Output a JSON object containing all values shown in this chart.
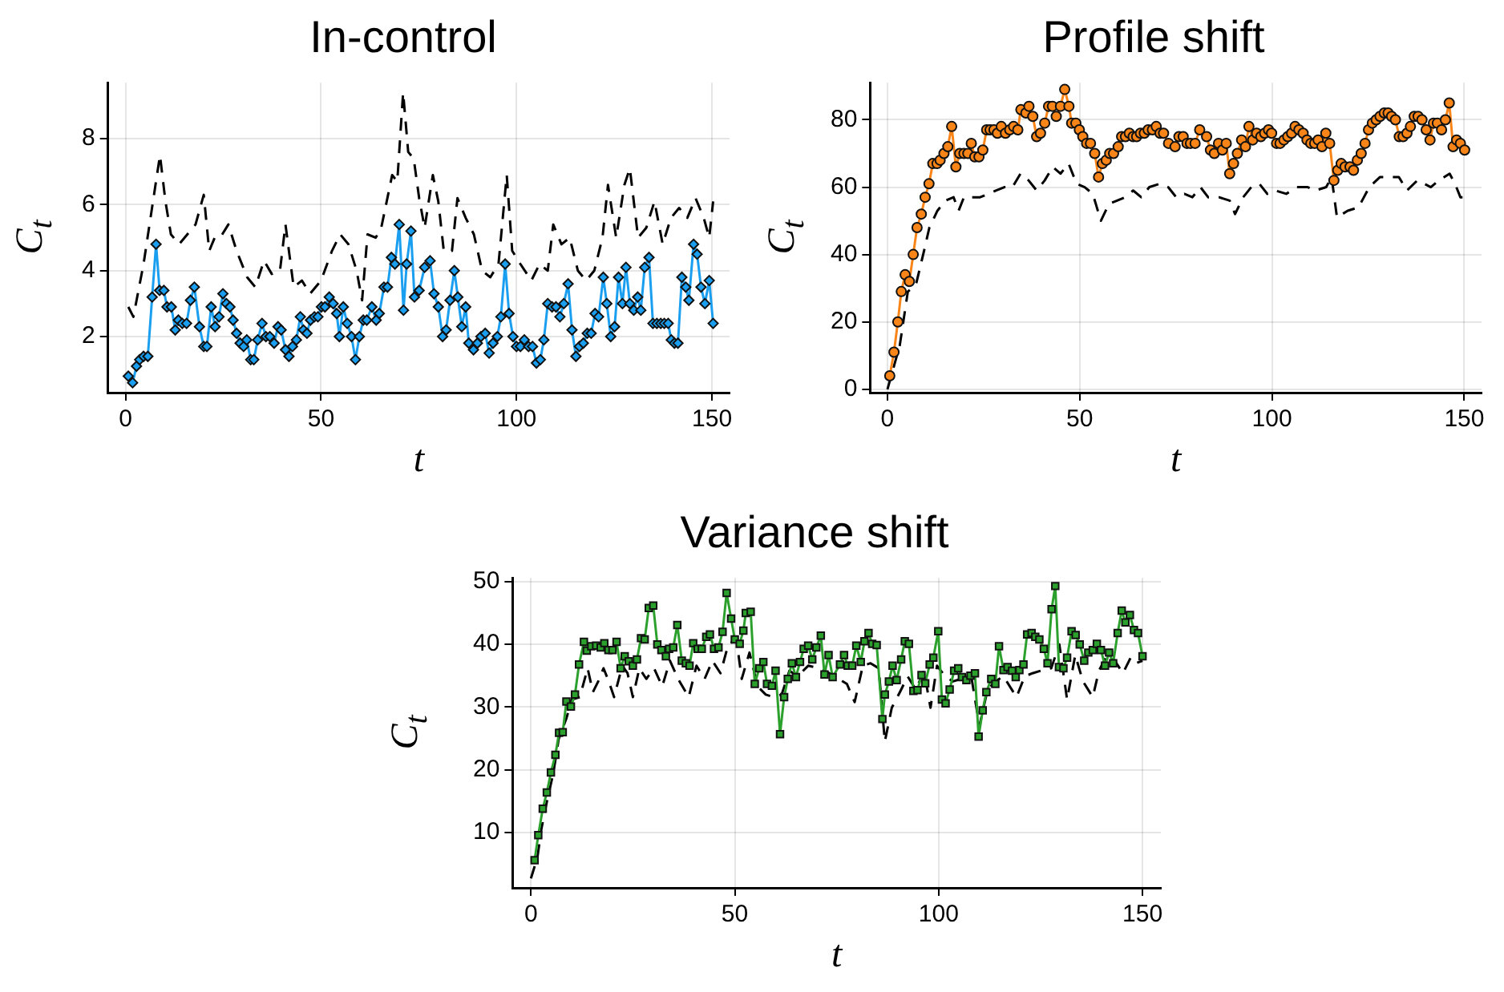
{
  "chart_data": [
    {
      "type": "line",
      "title": "In-control",
      "xlabel": "t",
      "ylabel": "C$_{t}$",
      "xlim": [
        -4.5,
        154.5
      ],
      "xticks": [
        0,
        50,
        100,
        150
      ],
      "ylim": [
        0.3,
        9.7
      ],
      "yticks": [
        2,
        4,
        6,
        8
      ],
      "grid": true,
      "legend": false,
      "series": [
        {
          "color": "#1a9ff0",
          "marker": "diamond",
          "line_style": "solid",
          "x": [
            0.7,
            1.8,
            2.8,
            3.6,
            4.6,
            5.7,
            6.8,
            7.8,
            8.7,
            9.8,
            10.6,
            11.7,
            12.7,
            13.5,
            14.5,
            15.6,
            16.6,
            17.6,
            18.9,
            20,
            20.8,
            21.9,
            22.9,
            23.9,
            24.9,
            25.8,
            26.7,
            27.5,
            28.4,
            29.3,
            30.2,
            31,
            32,
            32.8,
            33.8,
            34.9,
            35.9,
            36.9,
            38,
            39,
            39.8,
            40.9,
            41.8,
            42.7,
            43.7,
            44.7,
            45.5,
            46.4,
            47.3,
            48.3,
            49.2,
            50.1,
            51,
            52.1,
            53.1,
            54,
            54.7,
            55.7,
            56.7,
            57.8,
            58.8,
            59.8,
            60.8,
            61.7,
            63,
            64.1,
            64.9,
            66.1,
            67,
            68,
            68.9,
            70,
            71.1,
            71.9,
            73,
            73.9,
            75.1,
            76.5,
            77.9,
            78.9,
            80,
            81.1,
            82,
            83,
            84.1,
            85,
            86,
            87,
            87.8,
            89,
            90,
            90.9,
            92,
            93,
            94,
            95.1,
            96,
            97.1,
            98.1,
            99.1,
            100,
            101,
            102,
            103.1,
            104.1,
            105.1,
            106.1,
            107,
            108,
            109.1,
            110.1,
            111.1,
            112.1,
            113.2,
            114.2,
            115.2,
            116.1,
            117.1,
            118.1,
            119.1,
            120.1,
            121,
            122.2,
            123.1,
            124.1,
            125.1,
            126.1,
            127.1,
            128,
            129,
            130,
            131,
            131.8,
            132.8,
            133.9,
            134.9,
            135.9,
            136.9,
            137.8,
            138.8,
            139.6,
            140.4,
            141.3,
            142.3,
            143.3,
            144.1,
            145.3,
            146.2,
            147.2,
            148.2,
            149.3,
            150.3
          ],
          "values": [
            0.8,
            0.6,
            1.1,
            1.3,
            1.4,
            1.4,
            3.2,
            4.8,
            3.4,
            3.4,
            2.9,
            2.9,
            2.2,
            2.5,
            2.4,
            2.4,
            3.1,
            3.5,
            2.3,
            1.7,
            1.7,
            2.9,
            2.3,
            2.6,
            3.3,
            3.0,
            2.9,
            2.5,
            2.1,
            1.8,
            1.7,
            1.9,
            1.3,
            1.3,
            1.9,
            2.4,
            2.0,
            2.0,
            1.8,
            2.3,
            2.2,
            1.6,
            1.4,
            1.7,
            1.9,
            2.6,
            2.2,
            2.1,
            2.5,
            2.6,
            2.6,
            2.9,
            2.9,
            3.2,
            3.0,
            2.7,
            2.0,
            2.9,
            2.4,
            2.0,
            1.3,
            2.0,
            2.5,
            2.5,
            2.9,
            2.5,
            2.7,
            3.5,
            3.5,
            4.4,
            4.2,
            5.4,
            2.8,
            4.2,
            5.2,
            3.2,
            3.4,
            4.1,
            4.3,
            3.3,
            2.9,
            2.0,
            2.2,
            3.1,
            4.0,
            3.2,
            2.3,
            2.9,
            1.8,
            1.6,
            1.8,
            2.0,
            2.1,
            1.5,
            1.8,
            2.0,
            2.6,
            4.2,
            2.7,
            2.0,
            1.7,
            1.7,
            1.9,
            1.7,
            1.7,
            1.2,
            1.3,
            1.9,
            3.0,
            2.9,
            2.9,
            2.6,
            3.0,
            3.6,
            2.2,
            1.4,
            1.7,
            1.8,
            2.1,
            2.1,
            2.7,
            2.6,
            3.8,
            3.0,
            2.0,
            2.3,
            3.8,
            3.0,
            4.1,
            3.0,
            2.8,
            3.2,
            2.8,
            4.1,
            4.4,
            2.4,
            2.4,
            2.4,
            2.4,
            2.4,
            1.9,
            1.8,
            1.8,
            3.8,
            3.5,
            3.1,
            4.8,
            4.5,
            3.5,
            3.0,
            3.7,
            2.4
          ]
        },
        {
          "color": "#000000",
          "marker": "none",
          "line_style": "dashed",
          "x": [
            0.7,
            2,
            4.6,
            8.8,
            10.2,
            11.6,
            13.7,
            15.8,
            17.9,
            20,
            21.4,
            22.8,
            24.2,
            26.3,
            28.4,
            31.1,
            33.2,
            35.4,
            37.4,
            39.5,
            40.9,
            43,
            45.1,
            47.2,
            50,
            52.8,
            54.9,
            57,
            59.1,
            60.5,
            61.9,
            64,
            65.4,
            66.8,
            68.2,
            69.5,
            71,
            72.3,
            73.7,
            75.1,
            76.5,
            78.6,
            80,
            81.4,
            83.5,
            84.9,
            87,
            89.1,
            91.2,
            93.3,
            95.4,
            97.5,
            98.9,
            101,
            103.8,
            105.9,
            108,
            109.4,
            111.5,
            113.6,
            115.7,
            117.8,
            119.9,
            122,
            123.4,
            125.5,
            127.6,
            129,
            131.1,
            133.2,
            135.3,
            137.4,
            139.5,
            141.6,
            143.7,
            145.8,
            147.9,
            149.3,
            150.3
          ],
          "values": [
            2.9,
            2.6,
            4.2,
            7.5,
            6.1,
            5.1,
            4.8,
            5.1,
            5.4,
            6.3,
            4.6,
            5.0,
            5.0,
            5.4,
            4.6,
            3.8,
            3.5,
            4.3,
            3.9,
            4.0,
            5.4,
            3.5,
            3.7,
            3.3,
            3.7,
            4.6,
            5.1,
            4.8,
            4.0,
            3.1,
            5.1,
            5.0,
            5.3,
            6.1,
            6.9,
            6.7,
            9.4,
            7.6,
            7.4,
            6.2,
            5.3,
            6.9,
            6.1,
            4.6,
            4.6,
            6.2,
            5.6,
            5.1,
            4.0,
            3.8,
            4.2,
            6.9,
            4.6,
            4.2,
            3.7,
            4.2,
            4.0,
            5.4,
            4.8,
            5.0,
            4.0,
            3.7,
            4.0,
            5.0,
            6.6,
            5.0,
            6.6,
            7.1,
            5.0,
            5.3,
            6.1,
            4.8,
            5.6,
            5.9,
            5.6,
            6.2,
            5.6,
            5.0,
            6.1
          ]
        }
      ]
    },
    {
      "type": "line",
      "title": "Profile shift",
      "xlabel": "t",
      "ylabel": "C$_{t}$",
      "xlim": [
        -4.5,
        154.5
      ],
      "xticks": [
        0,
        50,
        100,
        150
      ],
      "ylim": [
        -1,
        91
      ],
      "yticks": [
        0,
        20,
        40,
        60,
        80
      ],
      "grid": true,
      "legend": false,
      "series": [
        {
          "color": "#f98418",
          "marker": "circle",
          "line_style": "solid",
          "x": [
            0.6,
            1.7,
            2.7,
            3.6,
            4.6,
            5.7,
            6.7,
            7.7,
            8.8,
            9.8,
            10.8,
            11.8,
            12.9,
            13.7,
            14.7,
            15.7,
            16.7,
            17.8,
            18.8,
            19.9,
            20.9,
            21.8,
            22.7,
            23.8,
            24.8,
            25.8,
            26.7,
            27.7,
            28.6,
            29.6,
            30.7,
            31.8,
            32.8,
            33.9,
            34.7,
            36,
            36.8,
            37.8,
            38.8,
            39.8,
            40.9,
            41.9,
            42.9,
            43.9,
            45,
            46.1,
            47.2,
            47.9,
            49,
            49.9,
            50.8,
            51.8,
            52.8,
            53.9,
            54.9,
            55.9,
            56.9,
            57.8,
            58.8,
            60,
            60.9,
            61.9,
            62.9,
            63.9,
            64.8,
            65.8,
            66.8,
            67.8,
            68.9,
            69.9,
            70.9,
            71.8,
            73.1,
            74.8,
            75.8,
            76.9,
            77.9,
            78.8,
            80,
            81.2,
            83,
            84,
            85,
            86.1,
            87.1,
            88.1,
            89,
            90,
            91,
            92.1,
            93.1,
            94,
            95,
            96,
            97.1,
            98.1,
            99.1,
            99.9,
            101.2,
            102.1,
            103.1,
            104.1,
            105.1,
            106,
            107,
            108.1,
            109.1,
            110.1,
            111.1,
            112,
            113,
            114,
            115,
            116.1,
            117.1,
            118,
            119,
            120.3,
            121.2,
            122.2,
            123.2,
            124.2,
            125.1,
            126.1,
            127.1,
            128.1,
            129.2,
            130.2,
            131.1,
            132.1,
            133.1,
            134.1,
            135.1,
            136,
            137,
            138,
            139,
            140.1,
            141.1,
            142,
            143,
            144.1,
            145.1,
            146.1,
            147.1,
            148,
            149,
            150.1
          ],
          "values": [
            4,
            11,
            20,
            29,
            34,
            32,
            40,
            48,
            52,
            57,
            61,
            67,
            67,
            68,
            70,
            72,
            78,
            66,
            70,
            70,
            70,
            73,
            69,
            69,
            71,
            77,
            77,
            77,
            76,
            78,
            76,
            77,
            78,
            77,
            83,
            82,
            84,
            81,
            75,
            76,
            79,
            84,
            84,
            81,
            84,
            89,
            84,
            79,
            79,
            77,
            75,
            73,
            73,
            70,
            63,
            67,
            68,
            70,
            70,
            72,
            75,
            75,
            76,
            75,
            75,
            76,
            76,
            77,
            77,
            78,
            76,
            76,
            73,
            72,
            75,
            75,
            73,
            73,
            73,
            77,
            75,
            71,
            70,
            73,
            71,
            73,
            64,
            67,
            70,
            74,
            72,
            78,
            74,
            76,
            75,
            76,
            77,
            76,
            73,
            73,
            74,
            75,
            76,
            78,
            77,
            76,
            74,
            73,
            73,
            74,
            72,
            76,
            73,
            62,
            65,
            67,
            66,
            66,
            65,
            68,
            70,
            73,
            77,
            79,
            80,
            81,
            82,
            82,
            81,
            80,
            75,
            75,
            76,
            78,
            81,
            81,
            80,
            77,
            74,
            79,
            79,
            77,
            80,
            85,
            72,
            74,
            73,
            71
          ]
        },
        {
          "color": "#000000",
          "marker": "none",
          "line_style": "dashed",
          "x": [
            0,
            3.2,
            5.3,
            7.4,
            9.5,
            10.9,
            13,
            15.1,
            17.2,
            18.5,
            19.9,
            22,
            24.1,
            26.2,
            28.3,
            30.4,
            32.5,
            34.6,
            36.7,
            38.8,
            40.9,
            43,
            45,
            47.1,
            49.2,
            51.3,
            53.4,
            55.5,
            57.6,
            59.7,
            61.8,
            63.9,
            66,
            68.1,
            70.8,
            73,
            75.1,
            77.2,
            79.3,
            81.4,
            83.4,
            86.2,
            89,
            90.4,
            92.5,
            94.6,
            96.7,
            98.8,
            100.9,
            103.7,
            106.5,
            109.3,
            111.3,
            114.1,
            115.5,
            116.9,
            119.7,
            122.5,
            125.3,
            128.1,
            130.9,
            133,
            135.1,
            137.8,
            141.3,
            143.4,
            146.2,
            147.6,
            149,
            150.1
          ],
          "values": [
            0,
            13,
            29,
            31,
            41,
            48,
            53,
            56,
            57,
            53,
            57,
            57,
            57,
            58,
            59,
            60,
            60,
            64,
            62,
            59,
            62,
            66,
            64,
            67,
            61,
            60,
            58,
            50,
            55,
            56,
            57,
            59,
            57,
            60,
            61,
            60,
            57,
            58,
            57,
            60,
            57,
            57,
            56,
            52,
            57,
            60,
            61,
            58,
            59,
            58,
            60,
            60,
            59,
            60,
            63,
            51,
            53,
            54,
            60,
            63,
            63,
            63,
            59,
            62,
            60,
            62,
            64,
            61,
            57,
            57
          ]
        }
      ]
    },
    {
      "type": "line",
      "title": "Variance shift",
      "xlabel": "t",
      "ylabel": "C$_{t}$",
      "xlim": [
        -4.5,
        154.5
      ],
      "xticks": [
        0,
        50,
        100,
        150
      ],
      "ylim": [
        1.2,
        50.6
      ],
      "yticks": [
        10,
        20,
        30,
        40,
        50
      ],
      "grid": true,
      "legend": false,
      "series": [
        {
          "color": "#2ca02c",
          "marker": "square",
          "line_style": "solid",
          "x": [
            0.9,
            1.8,
            2.9,
            3.9,
            4.9,
            6,
            6.9,
            7.8,
            8.7,
            9.8,
            10.8,
            11.8,
            13,
            13.7,
            14.8,
            16,
            17.1,
            18,
            19,
            20,
            21,
            22,
            23,
            24,
            25,
            26,
            27,
            27.9,
            28.9,
            30,
            31,
            32,
            33.1,
            33.9,
            34.9,
            35.9,
            37,
            38,
            38.9,
            39.8,
            40.9,
            41.9,
            43,
            43.9,
            44.9,
            46,
            47,
            48,
            49.1,
            50,
            51.2,
            52.1,
            52.7,
            53.9,
            54.9,
            56,
            57,
            57.9,
            59.1,
            60,
            61.1,
            62.1,
            63,
            64,
            65,
            66,
            66.9,
            68,
            69,
            70,
            71.1,
            72,
            73,
            74,
            75.8,
            76.8,
            77.7,
            78.8,
            79.8,
            80.9,
            81.8,
            82.8,
            83.7,
            84.8,
            86.2,
            86.8,
            87.8,
            88.7,
            89.7,
            90.8,
            91.7,
            92.7,
            93.8,
            94.8,
            95.8,
            96.7,
            97.8,
            98.7,
            99.9,
            100.8,
            101.7,
            102.7,
            103.8,
            104.8,
            105.7,
            106.8,
            107.8,
            108.9,
            109.8,
            110.8,
            111.7,
            112.9,
            113.9,
            114.8,
            115.9,
            116.9,
            118,
            118.9,
            119.8,
            120.8,
            121.7,
            122.8,
            123.7,
            124.7,
            125.8,
            126.7,
            127.7,
            128.6,
            129.5,
            130.6,
            131.5,
            132.6,
            133.6,
            134.6,
            135.7,
            136.7,
            137.8,
            138.8,
            139.8,
            140.8,
            141.8,
            142.8,
            143.9,
            144.9,
            145.8,
            146.9,
            147.9,
            148.9,
            150
          ],
          "values": [
            5.6,
            9.6,
            13.8,
            16.4,
            19.6,
            22.4,
            25.9,
            26,
            30.9,
            30.1,
            32,
            36.8,
            40.4,
            39,
            39.7,
            39.8,
            39.5,
            40.2,
            39.1,
            39.1,
            40.4,
            36.2,
            38.1,
            37.3,
            36.6,
            37.6,
            41,
            40.8,
            45.8,
            46.2,
            40,
            39.1,
            38.1,
            39.3,
            39.5,
            43.1,
            37.4,
            37,
            36.6,
            40.2,
            39.3,
            39.3,
            41.2,
            41.6,
            39.3,
            39.5,
            42,
            48.2,
            44.1,
            40.8,
            40.1,
            42.2,
            45,
            45.2,
            33.7,
            36.2,
            37.2,
            33.7,
            33.4,
            35.8,
            25.7,
            31.6,
            34.5,
            37,
            34.8,
            37.2,
            39.3,
            39.8,
            37.6,
            39.5,
            41.4,
            35.2,
            38.3,
            34.8,
            36.8,
            38.3,
            36.6,
            36.6,
            39.8,
            37.2,
            40.5,
            41.8,
            40.1,
            39.9,
            28.1,
            32,
            34.1,
            36.6,
            34.3,
            37.6,
            40.5,
            40.1,
            32.6,
            32.7,
            35.1,
            33.8,
            36.8,
            37.9,
            42.1,
            31.2,
            30.6,
            32.8,
            35.8,
            36.2,
            34.8,
            34.3,
            35,
            35.4,
            25.3,
            29.5,
            32.4,
            34.5,
            33.7,
            39.7,
            35.9,
            36.4,
            35.8,
            34.8,
            35.9,
            36.8,
            41.6,
            41.8,
            41.2,
            40.8,
            39.3,
            37,
            45.6,
            49.3,
            36.4,
            36.2,
            37.9,
            42.1,
            41.5,
            40,
            37.4,
            38.7,
            39.1,
            40.1,
            39.1,
            36.6,
            38.7,
            37,
            41.8,
            45.4,
            43.5,
            44.7,
            42.3,
            41.8,
            38.1
          ]
        },
        {
          "color": "#000000",
          "marker": "none",
          "line_style": "dashed",
          "x": [
            0,
            1.6,
            2.6,
            3.9,
            5.5,
            6.8,
            8.7,
            10,
            12,
            13.9,
            15.2,
            16.5,
            17.8,
            19.1,
            20.4,
            22.4,
            23.7,
            25,
            26.6,
            28.3,
            30.2,
            32.2,
            34.1,
            36.1,
            38.7,
            40.6,
            42.6,
            44.5,
            46.5,
            48.4,
            50.4,
            51.7,
            53.6,
            55.6,
            57.6,
            59.5,
            61.5,
            63.4,
            65.4,
            68,
            70.6,
            73.2,
            75.5,
            77.5,
            79.4,
            81.4,
            83.3,
            85.3,
            86.8,
            88.5,
            90.5,
            92.4,
            94.4,
            96.4,
            98,
            99.6,
            101.6,
            103.5,
            105.5,
            108.1,
            110,
            112,
            113.9,
            115.9,
            119.1,
            121.1,
            123,
            125,
            127.6,
            129.6,
            131.5,
            133.5,
            135.4,
            137.8,
            139.3,
            141.3,
            143.2,
            145.2,
            147.1,
            148.4,
            150
          ],
          "values": [
            2.7,
            6.1,
            10.7,
            14.9,
            19.5,
            24.9,
            28.2,
            31.2,
            31.6,
            36.2,
            32.4,
            34.1,
            36.2,
            34.1,
            31.6,
            36.6,
            35.4,
            31.6,
            36.2,
            34.5,
            36.2,
            33.3,
            37.4,
            34.5,
            31.6,
            36.6,
            34.5,
            37.4,
            35.4,
            40,
            40.8,
            34.5,
            38.7,
            33.3,
            32,
            31.6,
            32,
            35.8,
            34.9,
            36.6,
            36.2,
            35.4,
            34.5,
            33.7,
            30.8,
            36.6,
            37,
            36.2,
            24.5,
            29.9,
            32.4,
            34.9,
            32.8,
            35.8,
            29.9,
            36.6,
            34.9,
            34.1,
            34.5,
            34.5,
            27,
            32.8,
            34.1,
            34.9,
            31.6,
            34.9,
            35.4,
            35.8,
            36.2,
            40,
            31.2,
            38.3,
            34.1,
            31.6,
            35.8,
            38.3,
            37.4,
            35.4,
            37.9,
            37,
            37.4
          ]
        }
      ]
    }
  ]
}
